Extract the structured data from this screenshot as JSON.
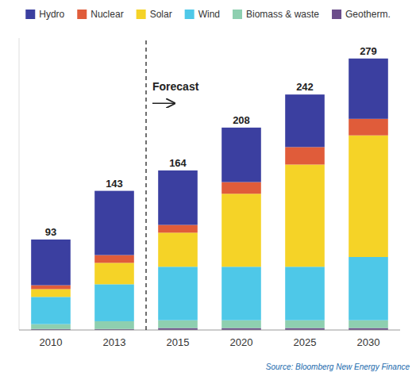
{
  "chart_data": {
    "type": "bar",
    "stacked": true,
    "categories": [
      "2010",
      "2013",
      "2015",
      "2020",
      "2025",
      "2030"
    ],
    "series": [
      {
        "name": "Geotherm.",
        "color": "#6b4d8a",
        "values": [
          1,
          1,
          2,
          2,
          2,
          2
        ]
      },
      {
        "name": "Biomass & waste",
        "color": "#8ecfb0",
        "values": [
          5,
          8,
          8,
          8,
          8,
          8
        ]
      },
      {
        "name": "Wind",
        "color": "#4ec8e8",
        "values": [
          28,
          38,
          55,
          55,
          55,
          65
        ]
      },
      {
        "name": "Solar",
        "color": "#f5d327",
        "values": [
          8,
          22,
          35,
          75,
          105,
          125
        ]
      },
      {
        "name": "Nuclear",
        "color": "#e05c3a",
        "values": [
          4,
          8,
          8,
          12,
          18,
          17
        ]
      },
      {
        "name": "Hydro",
        "color": "#3b3fa0",
        "values": [
          47,
          66,
          56,
          56,
          54,
          62
        ]
      }
    ],
    "totals": [
      93,
      143,
      164,
      208,
      242,
      279
    ],
    "annotations": [
      "Forecast"
    ],
    "source": "Source: Bloomberg New Energy Finance",
    "ylim": [
      0,
      300
    ],
    "tick_labels": "x",
    "grid": false,
    "legend": "top"
  }
}
